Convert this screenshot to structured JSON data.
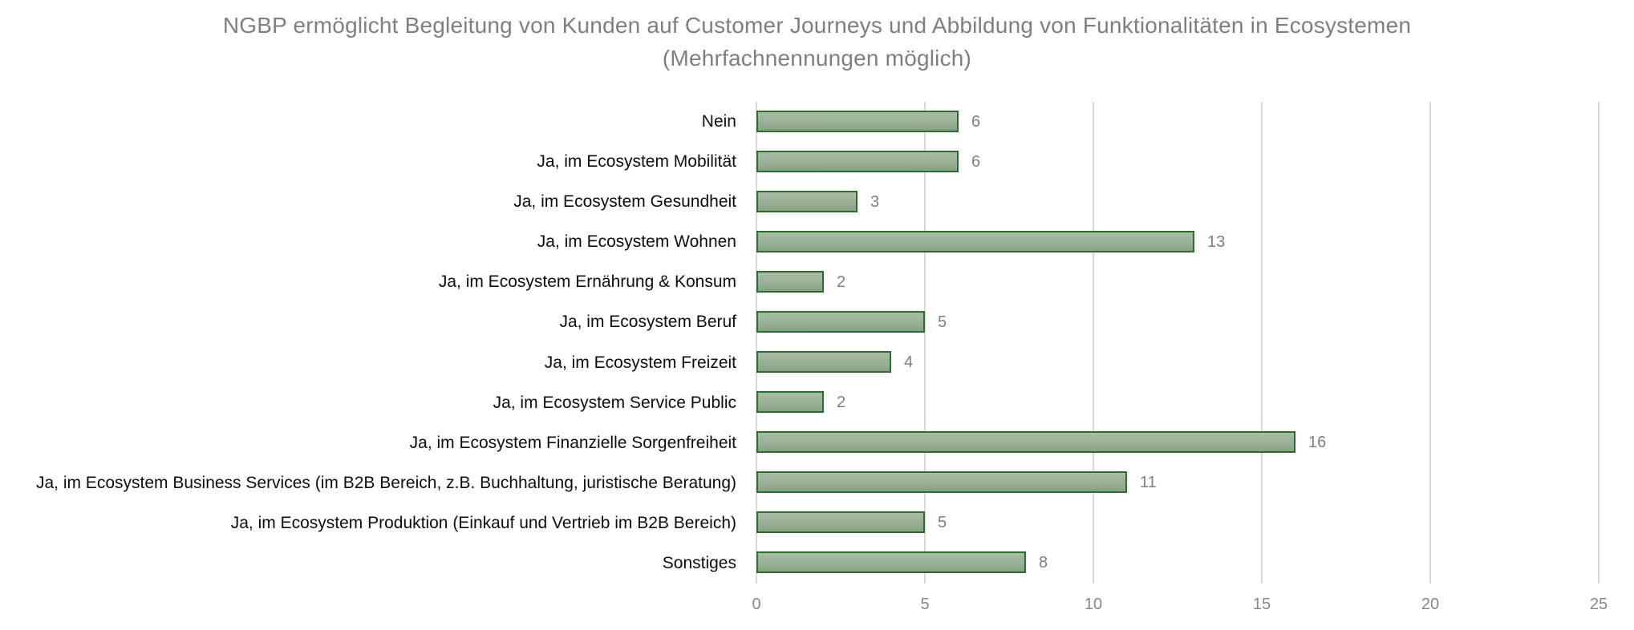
{
  "chart_data": {
    "type": "bar",
    "orientation": "horizontal",
    "title": "NGBP ermöglicht Begleitung von Kunden auf Customer Journeys und Abbildung von Funktionalitäten in Ecosystemen (Mehrfachnennungen möglich)",
    "title_lines": [
      "NGBP ermöglicht Begleitung von Kunden auf Customer Journeys und Abbildung von Funktionalitäten in Ecosystemen",
      "(Mehrfachnennungen möglich)"
    ],
    "categories": [
      "Nein",
      "Ja, im Ecosystem Mobilität",
      "Ja, im Ecosystem Gesundheit",
      "Ja, im Ecosystem Wohnen",
      "Ja, im Ecosystem Ernährung & Konsum",
      "Ja, im Ecosystem Beruf",
      "Ja, im Ecosystem Freizeit",
      "Ja, im Ecosystem Service Public",
      "Ja, im Ecosystem Finanzielle Sorgenfreiheit",
      "Ja, im Ecosystem Business Services (im B2B Bereich, z.B. Buchhaltung, juristische Beratung)",
      "Ja, im Ecosystem Produktion (Einkauf und Vertrieb im B2B Bereich)",
      "Sonstiges"
    ],
    "values": [
      6,
      6,
      3,
      13,
      2,
      5,
      4,
      2,
      16,
      11,
      5,
      8
    ],
    "xlabel": "",
    "ylabel": "",
    "xlim": [
      0,
      25
    ],
    "x_ticks": [
      0,
      5,
      10,
      15,
      20,
      25
    ],
    "grid": "vertical-only",
    "legend": "none",
    "colors": {
      "bar_fill_top": "#a9bda5",
      "bar_fill_bottom": "#89a286",
      "bar_border": "#2e6a32",
      "gridline": "#dadada",
      "title_text": "#7f7f7f",
      "category_text": "#0d0d0d",
      "value_text": "#7f7f7f",
      "axis_text": "#878787",
      "background": "#ffffff"
    }
  }
}
